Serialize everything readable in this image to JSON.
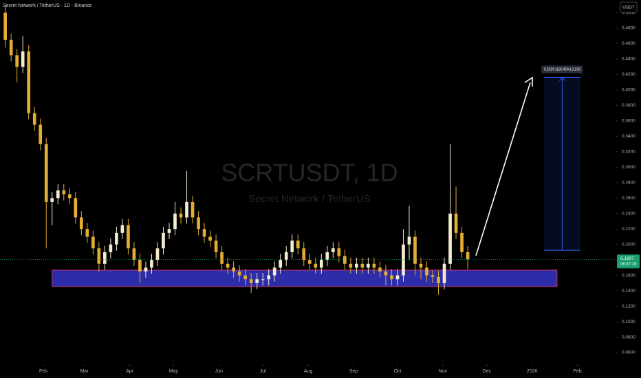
{
  "chart_data": {
    "type": "candlestick",
    "title": "Secret Network / TetherUS · 1D · Binance",
    "watermark": "SCRTUSDT, 1D",
    "watermark_subtitle": "Secret Network / TetherUS",
    "currency": "USDT",
    "up_color": "#f3ecd0",
    "down_color": "#e3ad34",
    "grid": false,
    "xlim": [
      2.4,
      423
    ],
    "xticks": [
      {
        "value": 32,
        "label": "Feb"
      },
      {
        "value": 60,
        "label": "Mar"
      },
      {
        "value": 91,
        "label": "Apr"
      },
      {
        "value": 121,
        "label": "May"
      },
      {
        "value": 152,
        "label": "Jun"
      },
      {
        "value": 182,
        "label": "Jul"
      },
      {
        "value": 213,
        "label": "Aug"
      },
      {
        "value": 244,
        "label": "Sep"
      },
      {
        "value": 274,
        "label": "Oct"
      },
      {
        "value": 305,
        "label": "Nov"
      },
      {
        "value": 335,
        "label": "Dec"
      },
      {
        "value": 366,
        "label": "2026"
      },
      {
        "value": 397,
        "label": "Feb"
      }
    ],
    "ylim": [
      0.0449,
      0.5165
    ],
    "yticks": [
      {
        "value": 0.5,
        "label": "0.5000"
      },
      {
        "value": 0.48,
        "label": "0.4800"
      },
      {
        "value": 0.46,
        "label": "0.4600"
      },
      {
        "value": 0.44,
        "label": "0.4400"
      },
      {
        "value": 0.42,
        "label": "0.4200"
      },
      {
        "value": 0.4,
        "label": "0.4000"
      },
      {
        "value": 0.38,
        "label": "0.3800"
      },
      {
        "value": 0.36,
        "label": "0.3600"
      },
      {
        "value": 0.34,
        "label": "0.3400"
      },
      {
        "value": 0.32,
        "label": "0.3200"
      },
      {
        "value": 0.3,
        "label": "0.3000"
      },
      {
        "value": 0.28,
        "label": "0.2800"
      },
      {
        "value": 0.26,
        "label": "0.2600"
      },
      {
        "value": 0.24,
        "label": "0.2400"
      },
      {
        "value": 0.22,
        "label": "0.2200"
      },
      {
        "value": 0.2,
        "label": "0.2000"
      },
      {
        "value": 0.18,
        "label": "0.1800"
      },
      {
        "value": 0.16,
        "label": "0.1600"
      },
      {
        "value": 0.14,
        "label": "0.1400"
      },
      {
        "value": 0.12,
        "label": "0.1200"
      },
      {
        "value": 0.1,
        "label": "0.1000"
      },
      {
        "value": 0.08,
        "label": "0.0800"
      },
      {
        "value": 0.06,
        "label": "0.0600"
      }
    ],
    "x": [
      6,
      10,
      14,
      18,
      22,
      26,
      30,
      34,
      38,
      42,
      46,
      50,
      54,
      58,
      62,
      66,
      70,
      74,
      78,
      82,
      86,
      90,
      94,
      98,
      102,
      106,
      110,
      114,
      118,
      122,
      126,
      130,
      134,
      138,
      142,
      146,
      150,
      154,
      158,
      162,
      166,
      170,
      174,
      178,
      182,
      186,
      190,
      194,
      198,
      202,
      206,
      210,
      214,
      218,
      222,
      226,
      230,
      234,
      238,
      242,
      246,
      250,
      254,
      258,
      262,
      266,
      270,
      274,
      278,
      282,
      286,
      290,
      294,
      298,
      302,
      306,
      310,
      314,
      318,
      322
    ],
    "open": [
      0.5,
      0.465,
      0.445,
      0.43,
      0.45,
      0.37,
      0.355,
      0.33,
      0.255,
      0.26,
      0.27,
      0.265,
      0.26,
      0.235,
      0.22,
      0.21,
      0.195,
      0.175,
      0.19,
      0.2,
      0.215,
      0.225,
      0.195,
      0.18,
      0.165,
      0.17,
      0.18,
      0.195,
      0.215,
      0.22,
      0.24,
      0.235,
      0.255,
      0.235,
      0.22,
      0.21,
      0.205,
      0.19,
      0.175,
      0.17,
      0.165,
      0.16,
      0.155,
      0.15,
      0.155,
      0.155,
      0.16,
      0.17,
      0.18,
      0.19,
      0.205,
      0.195,
      0.18,
      0.175,
      0.17,
      0.18,
      0.19,
      0.195,
      0.185,
      0.175,
      0.17,
      0.175,
      0.17,
      0.175,
      0.17,
      0.165,
      0.16,
      0.155,
      0.16,
      0.2,
      0.21,
      0.175,
      0.17,
      0.16,
      0.158,
      0.15,
      0.175,
      0.24,
      0.215,
      0.19
    ],
    "high": [
      0.51,
      0.473,
      0.453,
      0.47,
      0.458,
      0.378,
      0.363,
      0.338,
      0.268,
      0.278,
      0.278,
      0.273,
      0.268,
      0.243,
      0.228,
      0.218,
      0.203,
      0.198,
      0.208,
      0.223,
      0.233,
      0.233,
      0.203,
      0.188,
      0.178,
      0.188,
      0.203,
      0.223,
      0.228,
      0.255,
      0.248,
      0.295,
      0.263,
      0.243,
      0.228,
      0.218,
      0.213,
      0.198,
      0.183,
      0.178,
      0.173,
      0.168,
      0.163,
      0.163,
      0.163,
      0.168,
      0.178,
      0.188,
      0.198,
      0.213,
      0.213,
      0.203,
      0.188,
      0.183,
      0.188,
      0.198,
      0.203,
      0.203,
      0.193,
      0.183,
      0.183,
      0.183,
      0.183,
      0.183,
      0.178,
      0.173,
      0.168,
      0.168,
      0.22,
      0.25,
      0.218,
      0.183,
      0.178,
      0.166,
      0.166,
      0.183,
      0.33,
      0.275,
      0.223,
      0.198
    ],
    "low": [
      0.455,
      0.437,
      0.41,
      0.422,
      0.362,
      0.347,
      0.322,
      0.195,
      0.225,
      0.252,
      0.257,
      0.252,
      0.227,
      0.212,
      0.202,
      0.187,
      0.165,
      0.167,
      0.182,
      0.192,
      0.207,
      0.187,
      0.172,
      0.15,
      0.157,
      0.162,
      0.172,
      0.187,
      0.207,
      0.212,
      0.227,
      0.227,
      0.227,
      0.212,
      0.202,
      0.197,
      0.182,
      0.167,
      0.162,
      0.157,
      0.152,
      0.147,
      0.137,
      0.142,
      0.147,
      0.147,
      0.152,
      0.162,
      0.172,
      0.182,
      0.187,
      0.172,
      0.167,
      0.162,
      0.162,
      0.172,
      0.182,
      0.177,
      0.167,
      0.162,
      0.162,
      0.162,
      0.162,
      0.162,
      0.157,
      0.147,
      0.147,
      0.147,
      0.152,
      0.18,
      0.16,
      0.155,
      0.152,
      0.15,
      0.135,
      0.142,
      0.167,
      0.207,
      0.182,
      0.168
    ],
    "close": [
      0.465,
      0.445,
      0.43,
      0.45,
      0.37,
      0.355,
      0.33,
      0.255,
      0.26,
      0.27,
      0.265,
      0.26,
      0.235,
      0.22,
      0.21,
      0.195,
      0.175,
      0.19,
      0.2,
      0.215,
      0.225,
      0.195,
      0.18,
      0.165,
      0.17,
      0.18,
      0.195,
      0.215,
      0.22,
      0.24,
      0.235,
      0.255,
      0.235,
      0.22,
      0.21,
      0.205,
      0.19,
      0.175,
      0.17,
      0.165,
      0.16,
      0.155,
      0.15,
      0.155,
      0.155,
      0.16,
      0.17,
      0.18,
      0.19,
      0.205,
      0.195,
      0.18,
      0.175,
      0.17,
      0.18,
      0.19,
      0.195,
      0.185,
      0.175,
      0.17,
      0.175,
      0.17,
      0.175,
      0.17,
      0.165,
      0.16,
      0.155,
      0.16,
      0.2,
      0.21,
      0.175,
      0.17,
      0.16,
      0.158,
      0.15,
      0.175,
      0.24,
      0.215,
      0.19,
      0.1807
    ],
    "zone": {
      "top": 0.1668,
      "bottom": 0.1454,
      "start": 38,
      "end": 383,
      "color": "#3535c8",
      "border": "#d0306a"
    },
    "measure": {
      "label": "0.2239 (116.45%) 2,239",
      "from": 0.1925,
      "to": 0.4164,
      "start": 374,
      "end": 399,
      "color": "#2962ff"
    },
    "last_price": {
      "value": 0.1807,
      "label": "0.1807",
      "color": "#1a9e6e"
    },
    "countdown": "06:37:19"
  }
}
